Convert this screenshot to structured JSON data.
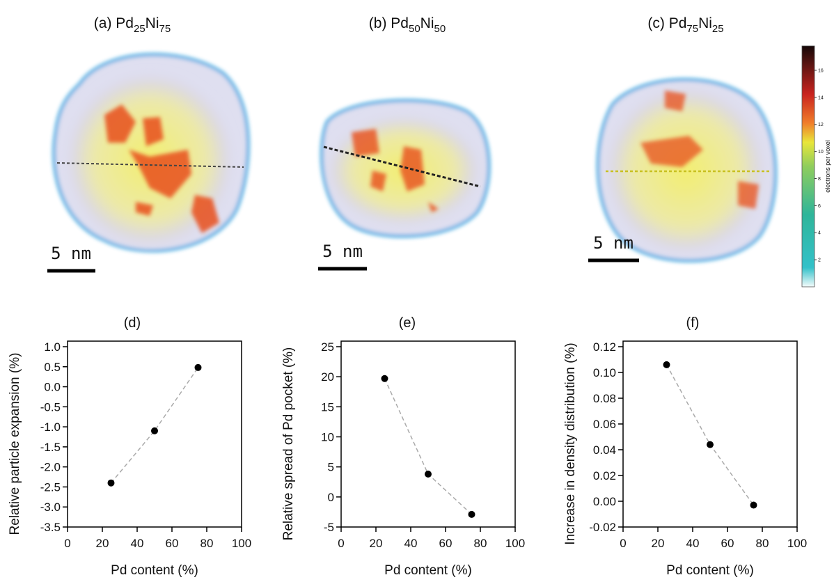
{
  "panels": [
    {
      "title": [
        {
          "text": "(a) Pd"
        },
        {
          "text": "25",
          "sub": true
        },
        {
          "text": "Ni"
        },
        {
          "text": "75",
          "sub": true
        }
      ],
      "scale_label": "5 nm"
    },
    {
      "title": [
        {
          "text": "(b) Pd"
        },
        {
          "text": "50",
          "sub": true
        },
        {
          "text": "Ni"
        },
        {
          "text": "50",
          "sub": true
        }
      ],
      "scale_label": "5 nm"
    },
    {
      "title": [
        {
          "text": "(c) Pd"
        },
        {
          "text": "75",
          "sub": true
        },
        {
          "text": "Ni"
        },
        {
          "text": "25",
          "sub": true
        }
      ],
      "scale_label": "5 nm"
    }
  ],
  "colorbar": {
    "label": "electrons per voxel",
    "clim": [
      0,
      17.8
    ],
    "ticks": [
      2,
      4,
      6,
      8,
      10,
      12,
      14,
      16
    ]
  },
  "chart_data": [
    {
      "type": "scatter",
      "title": "(d)",
      "x_label": "Pd content (%)",
      "y_label": "Relative particle expansion (%)",
      "x": [
        25,
        50,
        75
      ],
      "values": [
        -2.4,
        -1.1,
        0.48
      ],
      "color": "#000000",
      "line_color": "#aaaaaa",
      "line_style": "dashed",
      "xlim": [
        0,
        100
      ],
      "xticks": [
        0,
        20,
        40,
        60,
        80,
        100
      ],
      "ylim": [
        -3.5,
        1.0
      ],
      "yticks": [
        -3.5,
        {
          "value": -3.0,
          "label": "-3.0"
        },
        -2.5,
        {
          "value": -2.0,
          "label": "-2.0"
        },
        -1.5,
        {
          "value": -1.0,
          "label": "-1.0"
        },
        -0.5,
        {
          "value": 0,
          "label": "0.0"
        },
        0.5,
        {
          "value": 1.0,
          "label": "1.0"
        }
      ]
    },
    {
      "type": "scatter",
      "title": "(e)",
      "x_label": "Pd content (%)",
      "y_label": "Relative spread of Pd pocket (%)",
      "x": [
        25,
        50,
        75
      ],
      "values": [
        19.7,
        3.8,
        -2.9
      ],
      "color": "#000000",
      "line_color": "#aaaaaa",
      "line_style": "dashed",
      "xlim": [
        0,
        100
      ],
      "xticks": [
        0,
        20,
        40,
        60,
        80,
        100
      ],
      "ylim": [
        -5,
        25
      ],
      "yticks": [
        -5,
        0,
        5,
        10,
        15,
        20,
        25
      ]
    },
    {
      "type": "scatter",
      "title": "(f)",
      "x_label": "Pd content (%)",
      "y_label": "Increase in density distribution (%)",
      "x": [
        25,
        50,
        75
      ],
      "values": [
        0.106,
        0.044,
        -0.003
      ],
      "color": "#000000",
      "line_color": "#aaaaaa",
      "line_style": "dashed",
      "xlim": [
        0,
        100
      ],
      "xticks": [
        0,
        20,
        40,
        60,
        80,
        100
      ],
      "ylim": [
        -0.02,
        0.12
      ],
      "yticks": [
        -0.02,
        {
          "value": 0,
          "label": "0.00"
        },
        0.02,
        0.04,
        0.06,
        0.08,
        {
          "value": 0.1,
          "label": "0.10"
        },
        0.12
      ]
    }
  ]
}
